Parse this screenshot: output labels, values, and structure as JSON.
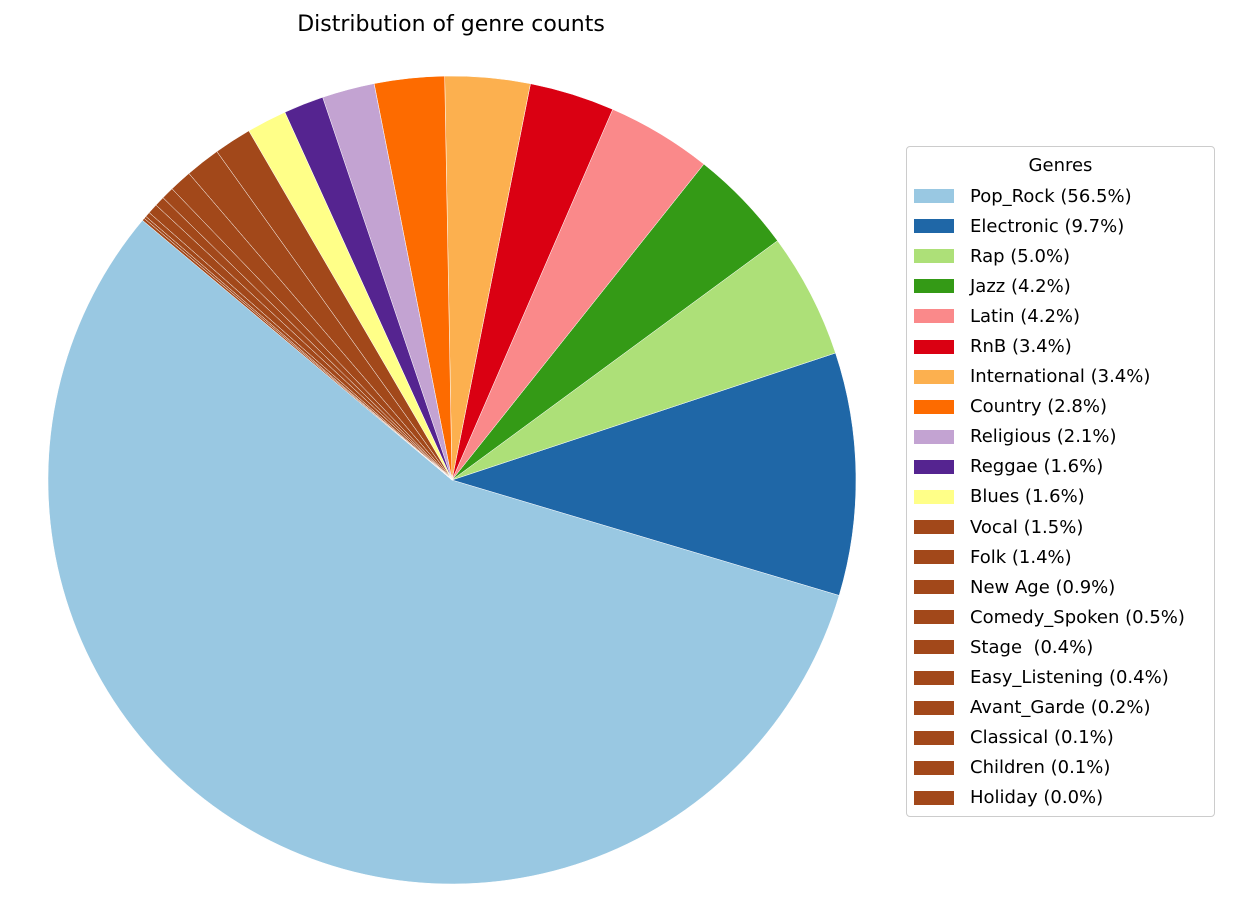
{
  "chart_data": {
    "type": "pie",
    "title": "Distribution of genre counts",
    "legend_title": "Genres",
    "legend_position": "right",
    "start_angle_deg": 140,
    "direction": "counterclockwise",
    "slices": [
      {
        "label": "Pop_Rock (56.5%)",
        "value": 56.5,
        "color": "#99c8e2"
      },
      {
        "label": "Electronic (9.7%)",
        "value": 9.7,
        "color": "#1f67a7"
      },
      {
        "label": "Rap (5.0%)",
        "value": 5.0,
        "color": "#ade078"
      },
      {
        "label": "Jazz (4.2%)",
        "value": 4.2,
        "color": "#349a16"
      },
      {
        "label": "Latin (4.2%)",
        "value": 4.2,
        "color": "#fa898a"
      },
      {
        "label": "RnB (3.4%)",
        "value": 3.4,
        "color": "#da0012"
      },
      {
        "label": "International (3.4%)",
        "value": 3.4,
        "color": "#fcb04f"
      },
      {
        "label": "Country (2.8%)",
        "value": 2.8,
        "color": "#fd6b00"
      },
      {
        "label": "Religious (2.1%)",
        "value": 2.1,
        "color": "#c3a3d2"
      },
      {
        "label": "Reggae (1.6%)",
        "value": 1.6,
        "color": "#552490"
      },
      {
        "label": "Blues (1.6%)",
        "value": 1.6,
        "color": "#ffff88"
      },
      {
        "label": "Vocal (1.5%)",
        "value": 1.5,
        "color": "#a2481a"
      },
      {
        "label": "Folk (1.4%)",
        "value": 1.4,
        "color": "#a2481a"
      },
      {
        "label": "New Age (0.9%)",
        "value": 0.9,
        "color": "#a2481a"
      },
      {
        "label": "Comedy_Spoken (0.5%)",
        "value": 0.5,
        "color": "#a2481a"
      },
      {
        "label": "Stage  (0.4%)",
        "value": 0.4,
        "color": "#a2481a"
      },
      {
        "label": "Easy_Listening (0.4%)",
        "value": 0.4,
        "color": "#a2481a"
      },
      {
        "label": "Avant_Garde (0.2%)",
        "value": 0.2,
        "color": "#a2481a"
      },
      {
        "label": "Classical (0.1%)",
        "value": 0.1,
        "color": "#a2481a"
      },
      {
        "label": "Children (0.1%)",
        "value": 0.1,
        "color": "#a2481a"
      },
      {
        "label": "Holiday (0.0%)",
        "value": 0.0,
        "color": "#a2481a"
      }
    ]
  }
}
